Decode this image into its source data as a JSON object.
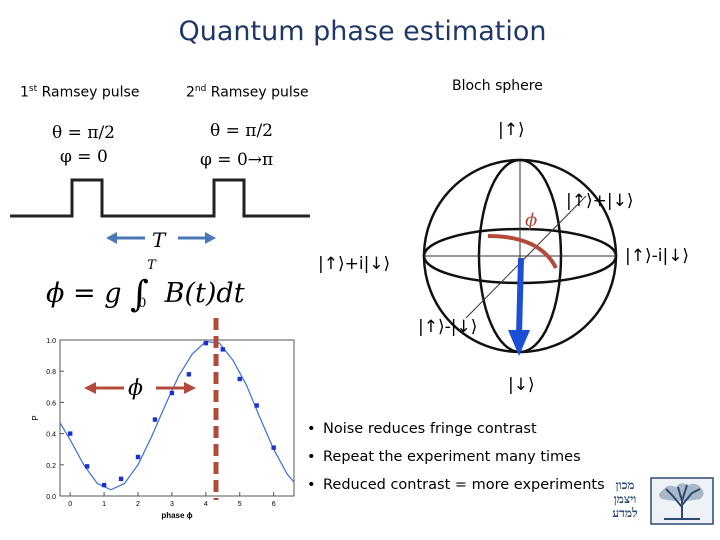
{
  "slide": {
    "title": "Quantum phase estimation"
  },
  "pulses": {
    "first_label_prefix": "1",
    "first_label_sup": "st",
    "first_label_rest": " Ramsey pulse",
    "second_label_prefix": "2",
    "second_label_sup": "nd",
    "second_label_rest": " Ramsey pulse",
    "first_theta": "θ = π/2",
    "first_phi": "φ = 0",
    "second_theta": "θ = π/2",
    "second_phi": "φ = 0→π",
    "duration_symbol": "T"
  },
  "formula": {
    "lhs": "ϕ = g",
    "integral": "∫",
    "upper": "T",
    "lower": "0",
    "rhs": "B(t)dt"
  },
  "bloch": {
    "title": "Bloch sphere",
    "ket_up": "|↑⟩",
    "ket_down": "|↓⟩",
    "ket_right": "|↑⟩+|↓⟩",
    "ket_left": "|↑⟩+i|↓⟩",
    "ket_far_right": "|↑⟩-i|↓⟩",
    "ket_front": "|↑⟩-|↓⟩",
    "phase_symbol": "ϕ"
  },
  "fringe_plot": {
    "phase_symbol": "ϕ"
  },
  "chart_data": {
    "type": "scatter",
    "title": "",
    "xlabel": "phase ϕ",
    "ylabel": "P",
    "xlim": [
      -0.3,
      6.6
    ],
    "ylim": [
      0.0,
      1.0
    ],
    "x_ticks": [
      0,
      1,
      2,
      3,
      4,
      5,
      6
    ],
    "y_ticks": [
      0.0,
      0.2,
      0.4,
      0.6,
      0.8,
      1.0
    ],
    "y_tick_labels": [
      "0.0",
      "0.2",
      "0.4",
      "0.6",
      "0.8",
      "1.0"
    ],
    "series": [
      {
        "kind": "points",
        "x": [
          0.0,
          0.5,
          1.0,
          1.5,
          2.0,
          2.5,
          3.0,
          3.5,
          4.0,
          4.5,
          5.0,
          5.5,
          6.0
        ],
        "y": [
          0.4,
          0.19,
          0.07,
          0.11,
          0.25,
          0.49,
          0.66,
          0.78,
          0.98,
          0.94,
          0.75,
          0.58,
          0.31
        ]
      },
      {
        "kind": "fit",
        "x": [
          -0.3,
          0.0,
          0.4,
          0.8,
          1.2,
          1.6,
          2.0,
          2.4,
          2.8,
          3.2,
          3.6,
          4.0,
          4.4,
          4.8,
          5.2,
          5.6,
          6.0,
          6.4,
          6.6
        ],
        "y": [
          0.47,
          0.36,
          0.2,
          0.08,
          0.04,
          0.08,
          0.2,
          0.38,
          0.58,
          0.77,
          0.91,
          0.99,
          0.98,
          0.87,
          0.71,
          0.5,
          0.3,
          0.14,
          0.09
        ]
      }
    ],
    "marker_line_x": 4.3,
    "grid": false
  },
  "bullets": [
    "Noise reduces fringe contrast",
    "Repeat the experiment many times",
    "Reduced contrast = more experiments"
  ],
  "logo": {
    "hebrew_text": "מכון ויצמן למדע"
  },
  "colors": {
    "title": "#1f3864",
    "arrow_blue": "#4a78b8",
    "arrow_red": "#b34a3a",
    "marker_red": "#b04a3c",
    "state_vector": "#1a4fd6",
    "fit_curve": "#3a6fd8",
    "points": "#1c2fd0",
    "logo": "#2a4a70"
  }
}
